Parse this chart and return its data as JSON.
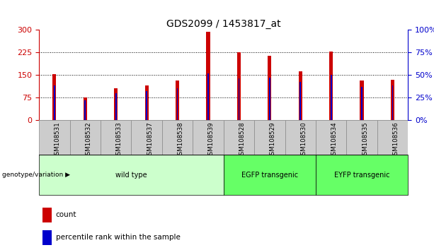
{
  "title": "GDS2099 / 1453817_at",
  "samples": [
    "GSM108531",
    "GSM108532",
    "GSM108533",
    "GSM108537",
    "GSM108538",
    "GSM108539",
    "GSM108528",
    "GSM108529",
    "GSM108530",
    "GSM108534",
    "GSM108535",
    "GSM108536"
  ],
  "count_values": [
    153,
    75,
    105,
    115,
    132,
    293,
    225,
    215,
    163,
    228,
    132,
    135
  ],
  "percentile_values": [
    38,
    22,
    30,
    32,
    35,
    52,
    46,
    47,
    42,
    50,
    37,
    38
  ],
  "group_configs": [
    {
      "start": 0,
      "end": 5,
      "label": "wild type",
      "color": "#ccffcc"
    },
    {
      "start": 6,
      "end": 8,
      "label": "EGFP transgenic",
      "color": "#66ff66"
    },
    {
      "start": 9,
      "end": 11,
      "label": "EYFP transgenic",
      "color": "#66ff66"
    }
  ],
  "left_ylim": [
    0,
    300
  ],
  "right_ylim": [
    0,
    100
  ],
  "left_yticks": [
    0,
    75,
    150,
    225,
    300
  ],
  "right_yticks": [
    0,
    25,
    50,
    75,
    100
  ],
  "right_yticklabels": [
    "0%",
    "25%",
    "50%",
    "75%",
    "100%"
  ],
  "left_color": "#cc0000",
  "right_color": "#0000cc",
  "bar_color": "#cc0000",
  "percentile_color": "#0000cc",
  "grid_color": "#000000",
  "bg_color": "#ffffff",
  "genotype_label": "genotype/variation",
  "legend_count": "count",
  "legend_percentile": "percentile rank within the sample",
  "tick_bg_color": "#cccccc",
  "bar_width": 0.12,
  "perc_bar_width": 0.04
}
